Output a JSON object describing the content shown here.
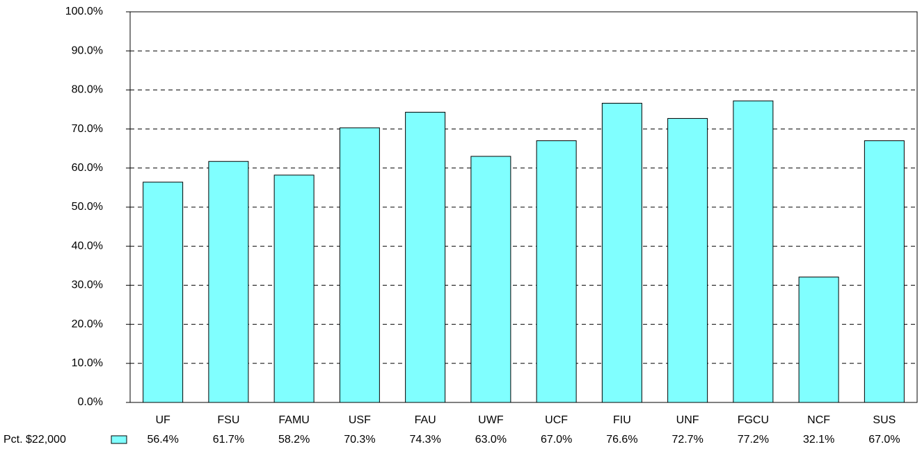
{
  "chart_data": {
    "type": "bar",
    "categories": [
      "UF",
      "FSU",
      "FAMU",
      "USF",
      "FAU",
      "UWF",
      "UCF",
      "FIU",
      "UNF",
      "FGCU",
      "NCF",
      "SUS"
    ],
    "series": [
      {
        "name": "Pct. $22,000",
        "color": "#80ffff",
        "values": [
          56.4,
          61.7,
          58.2,
          70.3,
          74.3,
          63.0,
          67.0,
          76.6,
          72.7,
          77.2,
          32.1,
          67.0
        ],
        "value_labels": [
          "56.4%",
          "61.7%",
          "58.2%",
          "70.3%",
          "74.3%",
          "63.0%",
          "67.0%",
          "76.6%",
          "72.7%",
          "77.2%",
          "32.1%",
          "67.0%"
        ]
      }
    ],
    "ylim": [
      0,
      100
    ],
    "yticks": [
      {
        "value": 0,
        "label": "0.0%"
      },
      {
        "value": 10,
        "label": "10.0%"
      },
      {
        "value": 20,
        "label": "20.0%"
      },
      {
        "value": 30,
        "label": "30.0%"
      },
      {
        "value": 40,
        "label": "40.0%"
      },
      {
        "value": 50,
        "label": "50.0%"
      },
      {
        "value": 60,
        "label": "60.0%"
      },
      {
        "value": 70,
        "label": "70.0%"
      },
      {
        "value": 80,
        "label": "80.0%"
      },
      {
        "value": 90,
        "label": "90.0%"
      },
      {
        "value": 100,
        "label": "100.0%"
      }
    ],
    "grid": true
  }
}
